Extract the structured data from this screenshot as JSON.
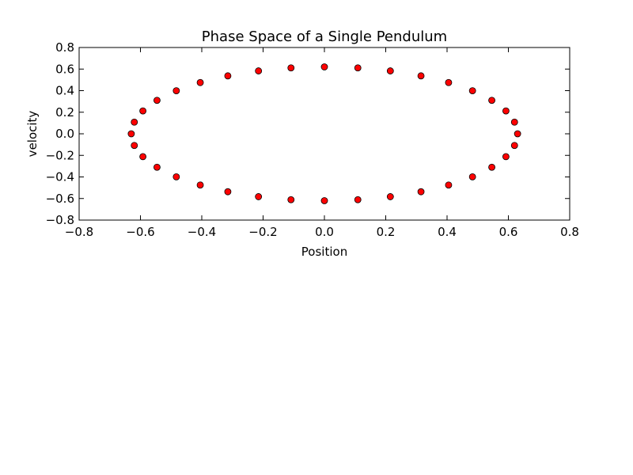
{
  "chart_data": {
    "type": "scatter",
    "title": "Phase Space of a Single Pendulum",
    "xlabel": "Position",
    "ylabel": "velocity",
    "xlim": [
      -0.8,
      0.8
    ],
    "ylim": [
      -0.8,
      0.8
    ],
    "xticks": [
      {
        "value": -0.8,
        "label": "−0.8"
      },
      {
        "value": -0.6,
        "label": "−0.6"
      },
      {
        "value": -0.4,
        "label": "−0.4"
      },
      {
        "value": -0.2,
        "label": "−0.2"
      },
      {
        "value": 0,
        "label": "0.0"
      },
      0.2,
      0.4,
      0.6,
      0.8
    ],
    "yticks": [
      {
        "value": -0.8,
        "label": "−0.8"
      },
      {
        "value": -0.6,
        "label": "−0.6"
      },
      {
        "value": -0.4,
        "label": "−0.4"
      },
      {
        "value": -0.2,
        "label": "−0.2"
      },
      {
        "value": 0,
        "label": "0.0"
      },
      0.2,
      0.4,
      0.6,
      0.8
    ],
    "color": "#ff0000",
    "x": [
      0.63,
      0.62,
      0.592,
      0.546,
      0.483,
      0.405,
      0.315,
      0.215,
      0.109,
      0,
      -0.109,
      -0.215,
      -0.315,
      -0.405,
      -0.483,
      -0.546,
      -0.592,
      -0.62,
      -0.63,
      -0.62,
      -0.592,
      -0.546,
      -0.483,
      -0.405,
      -0.315,
      -0.215,
      -0.109,
      0,
      0.109,
      0.215,
      0.315,
      0.405,
      0.483,
      0.546,
      0.592,
      0.62
    ],
    "y": [
      0,
      0.108,
      0.212,
      0.31,
      0.399,
      0.475,
      0.537,
      0.583,
      0.611,
      0.62,
      0.611,
      0.583,
      0.537,
      0.475,
      0.399,
      0.31,
      0.212,
      0.108,
      0,
      -0.108,
      -0.212,
      -0.31,
      -0.399,
      -0.475,
      -0.537,
      -0.583,
      -0.611,
      -0.62,
      -0.611,
      -0.583,
      -0.537,
      -0.475,
      -0.399,
      -0.31,
      -0.212,
      -0.108
    ]
  }
}
